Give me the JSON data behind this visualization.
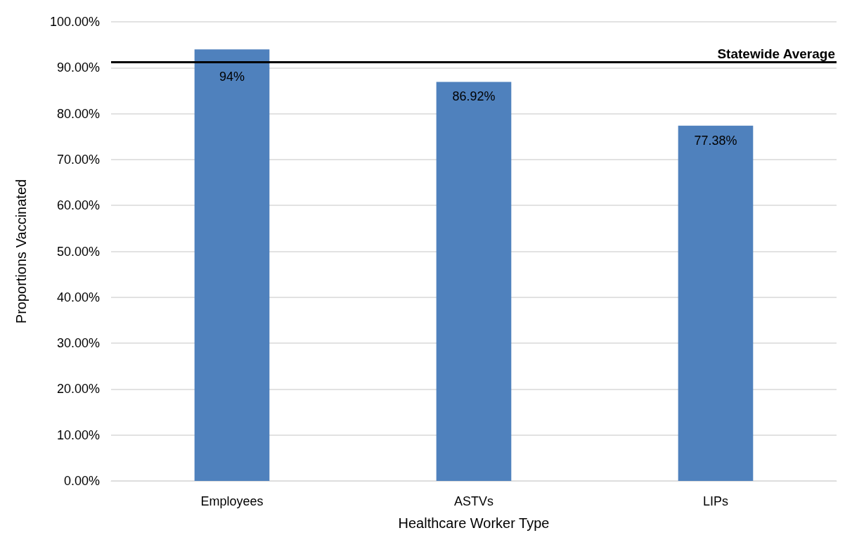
{
  "chart_data": {
    "type": "bar",
    "xlabel": "Healthcare Worker Type",
    "ylabel": "Proportions Vaccinated",
    "categories": [
      "Employees",
      "ASTVs",
      "LIPs"
    ],
    "series": [
      {
        "color": "#4f81bd",
        "values": [
          94,
          86.92,
          77.38
        ],
        "value_labels": [
          "94%",
          "86.92%",
          "77.38%"
        ]
      }
    ],
    "ylim": [
      0,
      100
    ],
    "yticks": [
      {
        "value": 0,
        "label": "0.00%"
      },
      {
        "value": 10,
        "label": "10.00%"
      },
      {
        "value": 20,
        "label": "20.00%"
      },
      {
        "value": 30,
        "label": "30.00%"
      },
      {
        "value": 40,
        "label": "40.00%"
      },
      {
        "value": 50,
        "label": "50.00%"
      },
      {
        "value": 60,
        "label": "60.00%"
      },
      {
        "value": 70,
        "label": "70.00%"
      },
      {
        "value": 80,
        "label": "80.00%"
      },
      {
        "value": 90,
        "label": "90.00%"
      },
      {
        "value": 100,
        "label": "100.00%"
      }
    ],
    "ref_lines": [
      {
        "axis": "y",
        "value": 91.2,
        "label": "Statewide Average",
        "color": "#000000"
      }
    ],
    "grid": "y"
  }
}
